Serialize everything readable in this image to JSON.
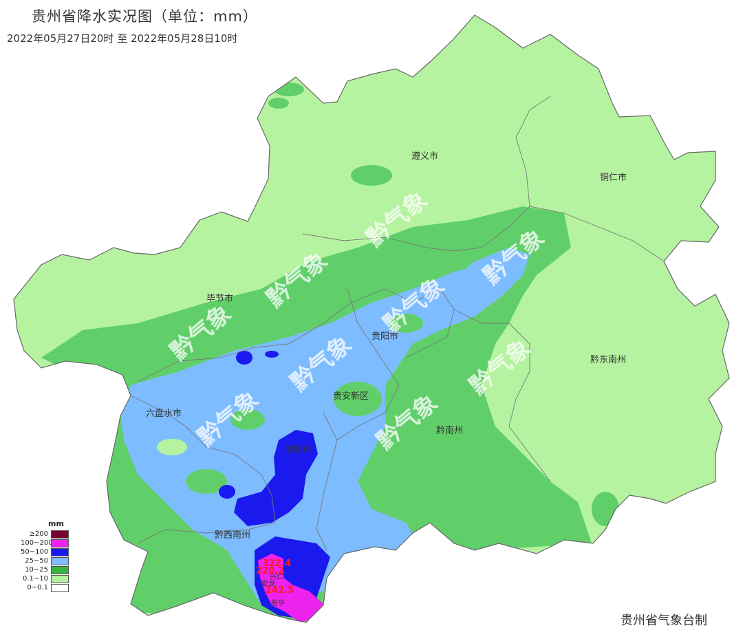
{
  "title": "贵州省降水实况图（单位：mm）",
  "subtitle": "2022年05月27日20时  至  2022年05月28日10时",
  "credit": "贵州省气象台制",
  "watermark_text": "黔气象",
  "colors": {
    "c1": "#b5f3a0",
    "c2": "#60cf6a",
    "c3": "#7dbcff",
    "c4": "#1a1aee",
    "c5": "#ee22ee",
    "c6": "#7a0034",
    "boundary": "#666666"
  },
  "cities": [
    {
      "name": "遵义市"
    },
    {
      "name": "铜仁市"
    },
    {
      "name": "毕节市"
    },
    {
      "name": "贵阳市"
    },
    {
      "name": "黔东南州"
    },
    {
      "name": "贵安新区"
    },
    {
      "name": "六盘水市"
    },
    {
      "name": "黔南州"
    },
    {
      "name": "安顺市"
    },
    {
      "name": "黔西南州"
    }
  ],
  "stations": [
    {
      "value": "322.4"
    },
    {
      "value": "220.2"
    },
    {
      "value": "242.5"
    }
  ],
  "small_places": [
    {
      "name": "兴仁"
    },
    {
      "name": "安龙"
    },
    {
      "name": "册亨"
    }
  ],
  "legend": {
    "unit": "mm",
    "items": [
      {
        "label": "≥200",
        "color": "#7a0034"
      },
      {
        "label": "100~200",
        "color": "#ee22ee"
      },
      {
        "label": "50~100",
        "color": "#1a1aee"
      },
      {
        "label": "25~50",
        "color": "#7dbcff"
      },
      {
        "label": "10~25",
        "color": "#38b240"
      },
      {
        "label": "0.1~10",
        "color": "#b5f3a0"
      },
      {
        "label": "0~0.1",
        "color": "#ffffff"
      }
    ]
  }
}
